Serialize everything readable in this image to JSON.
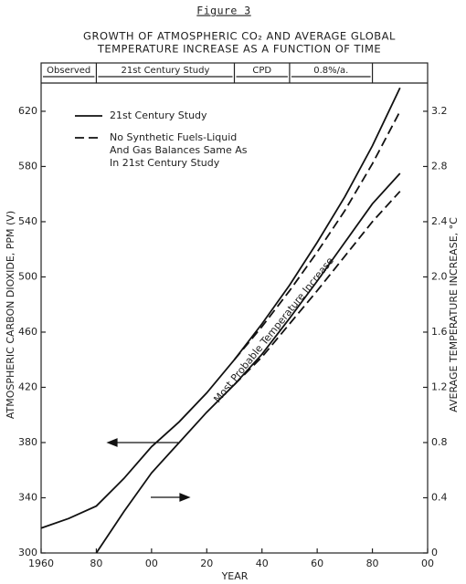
{
  "chart_data": {
    "type": "line",
    "figure_label": "Figure 3",
    "title": "GROWTH OF ATMOSPHERIC CO₂ AND AVERAGE GLOBAL",
    "subtitle": "TEMPERATURE INCREASE AS A FUNCTION OF TIME",
    "y_label": "ATMOSPHERIC CARBON DIOXIDE, PPM (V)",
    "y2_label": "AVERAGE TEMPERATURE INCREASE, °C",
    "x_label": "YEAR",
    "annotation": "Most Probable Temperature Increase",
    "periods": [
      {
        "label": "Observed",
        "start": 1960,
        "end": 1980
      },
      {
        "label": "21st Century Study",
        "start": 1980,
        "end": 2030
      },
      {
        "label": "CPD",
        "start": 2030,
        "end": 2050
      },
      {
        "label": "0.8%/a.",
        "start": 2050,
        "end": 2080
      }
    ],
    "x": [
      1960,
      1970,
      1980,
      1990,
      2000,
      2010,
      2020,
      2030,
      2040,
      2050,
      2060,
      2070,
      2080,
      2090
    ],
    "series": [
      {
        "name": "21st Century Study",
        "color": "#111",
        "dash": false,
        "values": [
          318,
          325,
          334,
          354,
          377,
          395,
          416,
          440,
          466,
          494,
          525,
          558,
          595,
          637
        ]
      },
      {
        "name": "No Synthetic Fuels-Liquid And Gas Balances Same As In 21st Century Study",
        "color": "#111",
        "dash": true,
        "values": [
          null,
          null,
          null,
          null,
          null,
          null,
          null,
          440,
          464,
          490,
          518,
          548,
          582,
          620
        ]
      },
      {
        "color": "#111",
        "dash": false,
        "axis": "y2",
        "values": [
          null,
          null,
          0,
          0.3,
          0.58,
          0.8,
          1.02,
          1.22,
          1.44,
          1.7,
          1.97,
          2.25,
          2.53,
          2.75
        ]
      },
      {
        "color": "#111",
        "dash": true,
        "axis": "y2",
        "values": [
          null,
          null,
          null,
          null,
          null,
          null,
          null,
          1.22,
          1.42,
          1.66,
          1.9,
          2.15,
          2.4,
          2.62
        ]
      }
    ],
    "xlim": [
      1960,
      2100
    ],
    "xticks": [
      {
        "value": 1960,
        "label": "1960"
      },
      {
        "value": 1980,
        "label": "80"
      },
      {
        "value": 2000,
        "label": "00"
      },
      {
        "value": 2020,
        "label": "20"
      },
      {
        "value": 2040,
        "label": "40"
      },
      {
        "value": 2060,
        "label": "60"
      },
      {
        "value": 2080,
        "label": "80"
      },
      {
        "value": 2100,
        "label": "00"
      }
    ],
    "ylim": [
      300,
      655
    ],
    "yticks": [
      300,
      340,
      380,
      420,
      460,
      500,
      540,
      580,
      620
    ],
    "y2lim": [
      0,
      3.55
    ],
    "y2ticks": [
      0,
      0.4,
      0.8,
      1.2,
      1.6,
      {
        "value": 2,
        "label": "2.0"
      },
      2.4,
      2.8,
      3.2
    ]
  }
}
